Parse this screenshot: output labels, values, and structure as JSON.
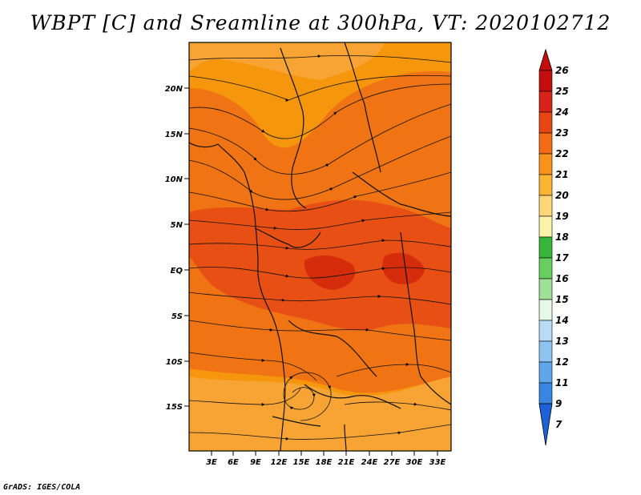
{
  "title": "WBPT [C] and Sreamline at 300hPa, VT: 2020102712",
  "map": {
    "lon_labels": [
      "3E",
      "6E",
      "9E",
      "12E",
      "15E",
      "18E",
      "21E",
      "24E",
      "27E",
      "30E",
      "33E"
    ],
    "lat_labels": [
      "20N",
      "15N",
      "10N",
      "5N",
      "EQ",
      "5S",
      "10S",
      "15S"
    ],
    "fill_colors": {
      "c20_21": "#f8a434",
      "c21_22": "#f5960c",
      "c22_23": "#f07314",
      "c23_24": "#e84f14",
      "c24_25": "#d52c0c"
    }
  },
  "colorbar": {
    "labels": [
      "26",
      "25",
      "24",
      "23",
      "22",
      "21",
      "20",
      "19",
      "18",
      "17",
      "16",
      "15",
      "14",
      "13",
      "12",
      "11",
      "9",
      "7"
    ],
    "colors": [
      "#c20e0e",
      "#d6241b",
      "#e84515",
      "#f36b15",
      "#f8921a",
      "#fbb533",
      "#fdd778",
      "#fcf2a8",
      "#37b53b",
      "#66cf5f",
      "#9fe197",
      "#e6f8e8",
      "#b8dcf6",
      "#8fc4f2",
      "#5fa6ea",
      "#3986e0",
      "#1c62d6"
    ]
  },
  "credit": "GrADS: IGES/COLA"
}
